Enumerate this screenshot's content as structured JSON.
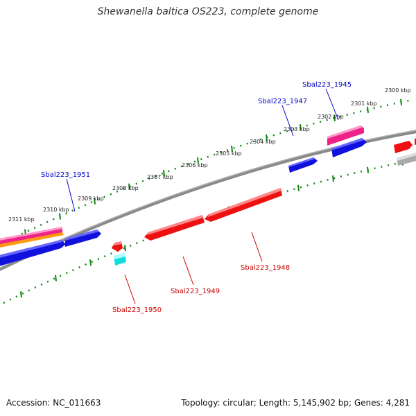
{
  "title": "Shewanella baltica OS223, complete genome",
  "footer": {
    "accession": "Accession: NC_011663",
    "genome_info": "Topology: circular; Length: 5,145,902 bp; Genes: 4,281"
  },
  "colors": {
    "backbone": "#888888",
    "scale_ticks": "#118811",
    "forward_label": "#0000cc",
    "reverse_label": "#cc0000",
    "tick_label": "#222222",
    "gene_red": "#ee1111",
    "gene_blue": "#1111dd",
    "gene_pink": "#ee2288",
    "gene_orange": "#ff9911",
    "gene_cyan": "#11dddd",
    "gene_gray": "#aaaaaa"
  },
  "scale": {
    "tick_labels": [
      "2300 kbp",
      "2301 kbp",
      "2302 kbp",
      "2303 kbp",
      "2304 kbp",
      "2305 kbp",
      "2306 kbp",
      "2307 kbp",
      "2308 kbp",
      "2309 kbp",
      "2310 kbp",
      "2311 kbp"
    ]
  },
  "gene_labels": {
    "sbal_1945": "Sbal223_1945",
    "sbal_1947": "Sbal223_1947",
    "sbal_1951": "Sbal223_1951",
    "sbal_1948": "Sbal223_1948",
    "sbal_1949": "Sbal223_1949",
    "sbal_1950": "Sbal223_1950"
  }
}
